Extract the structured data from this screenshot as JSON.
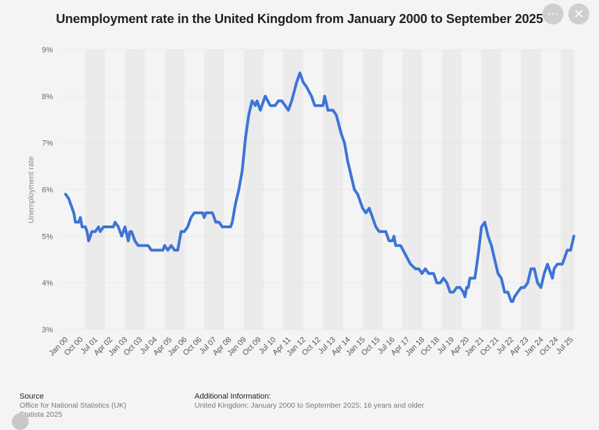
{
  "page": {
    "more_icon": "ellipsis-icon",
    "close_icon": "close-icon",
    "more_glyph": "⋯",
    "close_glyph": "✕"
  },
  "footer": {
    "source_heading": "Source",
    "source_line1": "Office for National Statistics (UK)",
    "source_line2": "Statista 2025",
    "info_heading": "Additional Information:",
    "info_text": "United Kingdom; January 2000 to September 2025; 16 years and older"
  },
  "colors": {
    "line": "#3d74d6",
    "grid": "#dddddd",
    "band": "#ebebeb",
    "background": "#f4f4f4"
  },
  "chart_data": {
    "type": "line",
    "title": "Unemployment rate in the United Kingdom from January 2000 to September 2025",
    "ylabel": "Unemployment rate",
    "xlabel": "",
    "ylim": [
      3,
      9
    ],
    "y_ticks": [
      "3%",
      "4%",
      "5%",
      "6%",
      "7%",
      "8%",
      "9%"
    ],
    "x_ticks": [
      "Jan 00",
      "Oct 00",
      "Jul 01",
      "Apr 02",
      "Jan 03",
      "Oct 03",
      "Jul 04",
      "Apr 05",
      "Jan 06",
      "Oct 06",
      "Jul 07",
      "Apr 08",
      "Jan 09",
      "Oct 09",
      "Jul 10",
      "Apr 11",
      "Jan 12",
      "Oct 12",
      "Jul 13",
      "Apr 14",
      "Jan 15",
      "Oct 15",
      "Jul 16",
      "Apr 17",
      "Jan 18",
      "Oct 18",
      "Jul 19",
      "Apr 20",
      "Jan 21",
      "Oct 21",
      "Jul 22",
      "Apr 23",
      "Jan 24",
      "Oct 24",
      "Jul 25"
    ],
    "x_start": "Jan 2000",
    "x_end": "Sep 2025",
    "grid": true,
    "series": [
      {
        "color": "#3d74d6",
        "points": [
          [
            "2000-01",
            5.9
          ],
          [
            "2000-03",
            5.8
          ],
          [
            "2000-06",
            5.5
          ],
          [
            "2000-07",
            5.3
          ],
          [
            "2000-09",
            5.3
          ],
          [
            "2000-10",
            5.4
          ],
          [
            "2000-11",
            5.2
          ],
          [
            "2001-01",
            5.2
          ],
          [
            "2001-02",
            5.1
          ],
          [
            "2001-03",
            4.9
          ],
          [
            "2001-05",
            5.1
          ],
          [
            "2001-07",
            5.1
          ],
          [
            "2001-09",
            5.2
          ],
          [
            "2001-10",
            5.1
          ],
          [
            "2001-12",
            5.2
          ],
          [
            "2002-03",
            5.2
          ],
          [
            "2002-06",
            5.2
          ],
          [
            "2002-07",
            5.3
          ],
          [
            "2002-09",
            5.2
          ],
          [
            "2002-11",
            5.0
          ],
          [
            "2003-01",
            5.2
          ],
          [
            "2003-03",
            4.9
          ],
          [
            "2003-04",
            5.1
          ],
          [
            "2003-05",
            5.1
          ],
          [
            "2003-07",
            4.9
          ],
          [
            "2003-09",
            4.8
          ],
          [
            "2003-12",
            4.8
          ],
          [
            "2004-03",
            4.8
          ],
          [
            "2004-05",
            4.7
          ],
          [
            "2004-09",
            4.7
          ],
          [
            "2004-12",
            4.7
          ],
          [
            "2005-01",
            4.8
          ],
          [
            "2005-03",
            4.7
          ],
          [
            "2005-05",
            4.8
          ],
          [
            "2005-07",
            4.7
          ],
          [
            "2005-09",
            4.7
          ],
          [
            "2005-10",
            4.9
          ],
          [
            "2005-11",
            5.1
          ],
          [
            "2006-01",
            5.1
          ],
          [
            "2006-03",
            5.2
          ],
          [
            "2006-05",
            5.4
          ],
          [
            "2006-07",
            5.5
          ],
          [
            "2006-10",
            5.5
          ],
          [
            "2006-12",
            5.5
          ],
          [
            "2007-01",
            5.4
          ],
          [
            "2007-02",
            5.5
          ],
          [
            "2007-06",
            5.5
          ],
          [
            "2007-08",
            5.3
          ],
          [
            "2007-10",
            5.3
          ],
          [
            "2007-12",
            5.2
          ],
          [
            "2008-03",
            5.2
          ],
          [
            "2008-05",
            5.2
          ],
          [
            "2008-06",
            5.3
          ],
          [
            "2008-07",
            5.5
          ],
          [
            "2008-08",
            5.7
          ],
          [
            "2008-10",
            6.0
          ],
          [
            "2008-12",
            6.4
          ],
          [
            "2009-02",
            7.1
          ],
          [
            "2009-04",
            7.6
          ],
          [
            "2009-06",
            7.9
          ],
          [
            "2009-08",
            7.8
          ],
          [
            "2009-09",
            7.9
          ],
          [
            "2009-11",
            7.7
          ],
          [
            "2010-02",
            8.0
          ],
          [
            "2010-05",
            7.8
          ],
          [
            "2010-08",
            7.8
          ],
          [
            "2010-10",
            7.9
          ],
          [
            "2010-12",
            7.9
          ],
          [
            "2011-02",
            7.8
          ],
          [
            "2011-04",
            7.7
          ],
          [
            "2011-06",
            7.9
          ],
          [
            "2011-09",
            8.3
          ],
          [
            "2011-11",
            8.5
          ],
          [
            "2012-01",
            8.3
          ],
          [
            "2012-03",
            8.2
          ],
          [
            "2012-06",
            8.0
          ],
          [
            "2012-08",
            7.8
          ],
          [
            "2012-10",
            7.8
          ],
          [
            "2012-12",
            7.8
          ],
          [
            "2013-01",
            7.8
          ],
          [
            "2013-02",
            8.0
          ],
          [
            "2013-04",
            7.7
          ],
          [
            "2013-07",
            7.7
          ],
          [
            "2013-09",
            7.6
          ],
          [
            "2013-12",
            7.2
          ],
          [
            "2014-02",
            7.0
          ],
          [
            "2014-04",
            6.6
          ],
          [
            "2014-06",
            6.3
          ],
          [
            "2014-08",
            6.0
          ],
          [
            "2014-10",
            5.9
          ],
          [
            "2015-01",
            5.6
          ],
          [
            "2015-03",
            5.5
          ],
          [
            "2015-05",
            5.6
          ],
          [
            "2015-07",
            5.4
          ],
          [
            "2015-09",
            5.2
          ],
          [
            "2015-11",
            5.1
          ],
          [
            "2016-03",
            5.1
          ],
          [
            "2016-05",
            4.9
          ],
          [
            "2016-07",
            4.9
          ],
          [
            "2016-08",
            5.0
          ],
          [
            "2016-09",
            4.8
          ],
          [
            "2016-12",
            4.8
          ],
          [
            "2017-03",
            4.6
          ],
          [
            "2017-06",
            4.4
          ],
          [
            "2017-09",
            4.3
          ],
          [
            "2017-11",
            4.3
          ],
          [
            "2018-01",
            4.2
          ],
          [
            "2018-03",
            4.3
          ],
          [
            "2018-05",
            4.2
          ],
          [
            "2018-08",
            4.2
          ],
          [
            "2018-10",
            4.0
          ],
          [
            "2018-12",
            4.0
          ],
          [
            "2019-02",
            4.1
          ],
          [
            "2019-04",
            4.0
          ],
          [
            "2019-06",
            3.8
          ],
          [
            "2019-08",
            3.8
          ],
          [
            "2019-10",
            3.9
          ],
          [
            "2019-12",
            3.9
          ],
          [
            "2020-02",
            3.8
          ],
          [
            "2020-03",
            3.7
          ],
          [
            "2020-04",
            3.9
          ],
          [
            "2020-05",
            3.9
          ],
          [
            "2020-06",
            4.1
          ],
          [
            "2020-09",
            4.1
          ],
          [
            "2020-11",
            4.6
          ],
          [
            "2021-01",
            5.2
          ],
          [
            "2021-03",
            5.3
          ],
          [
            "2021-05",
            5.0
          ],
          [
            "2021-07",
            4.8
          ],
          [
            "2021-09",
            4.5
          ],
          [
            "2021-11",
            4.2
          ],
          [
            "2022-01",
            4.1
          ],
          [
            "2022-03",
            3.8
          ],
          [
            "2022-05",
            3.8
          ],
          [
            "2022-07",
            3.6
          ],
          [
            "2022-08",
            3.6
          ],
          [
            "2022-09",
            3.7
          ],
          [
            "2022-11",
            3.8
          ],
          [
            "2023-01",
            3.9
          ],
          [
            "2023-03",
            3.9
          ],
          [
            "2023-05",
            4.0
          ],
          [
            "2023-07",
            4.3
          ],
          [
            "2023-09",
            4.3
          ],
          [
            "2023-11",
            4.0
          ],
          [
            "2024-01",
            3.9
          ],
          [
            "2024-03",
            4.2
          ],
          [
            "2024-05",
            4.4
          ],
          [
            "2024-07",
            4.2
          ],
          [
            "2024-08",
            4.1
          ],
          [
            "2024-09",
            4.3
          ],
          [
            "2024-11",
            4.4
          ],
          [
            "2025-02",
            4.4
          ],
          [
            "2025-05",
            4.7
          ],
          [
            "2025-07",
            4.7
          ],
          [
            "2025-09",
            5.0
          ]
        ]
      }
    ]
  }
}
